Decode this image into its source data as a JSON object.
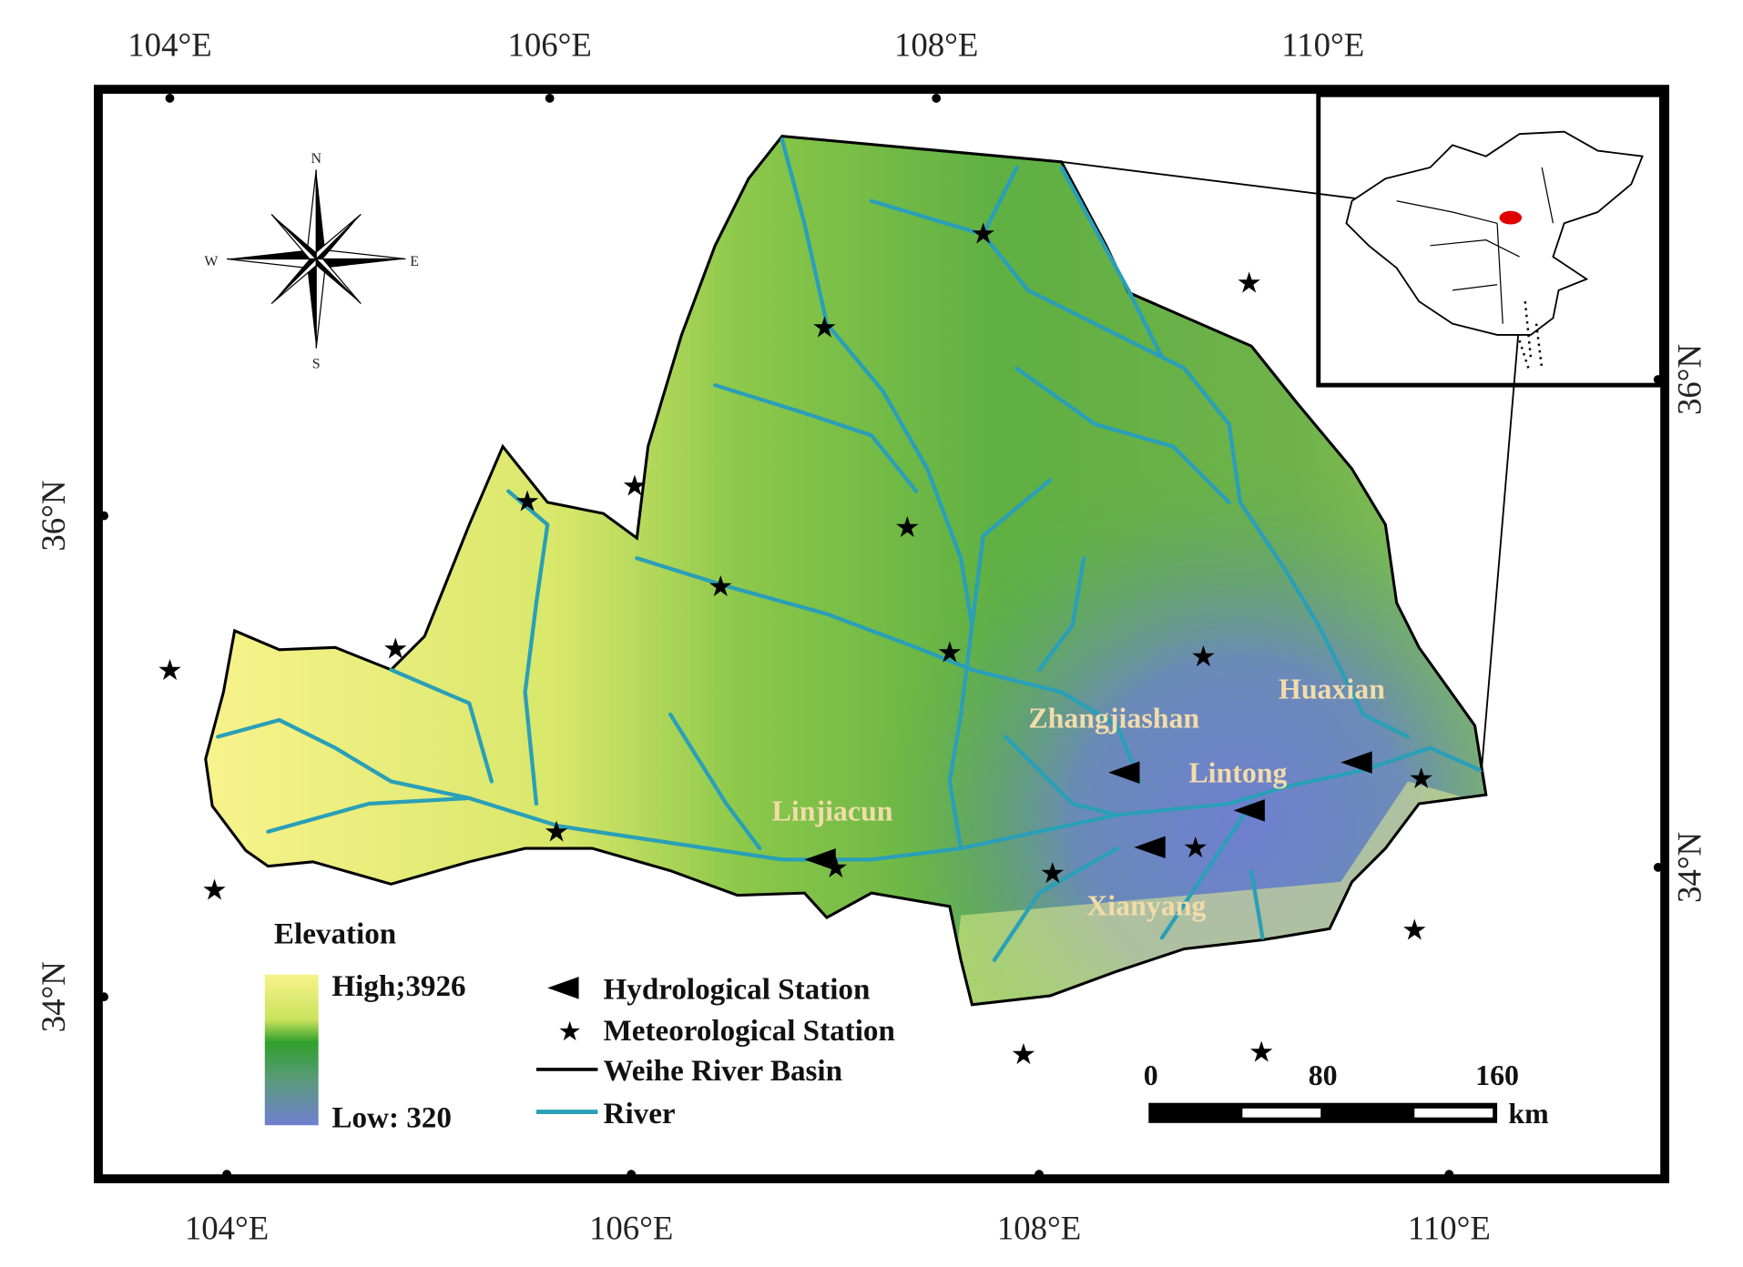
{
  "axes": {
    "top": [
      "104°E",
      "106°E",
      "108°E",
      "110°E"
    ],
    "bottom": [
      "104°E",
      "106°E",
      "108°E",
      "110°E"
    ],
    "left": [
      "36°N",
      "34°N"
    ],
    "right": [
      "36°N",
      "34°N"
    ]
  },
  "compass": {
    "north": "N",
    "south": "S",
    "west": "W",
    "east": "E"
  },
  "legend": {
    "title": "Elevation",
    "high": "High;3926",
    "low": "Low: 320",
    "items": [
      "Hydrological Station",
      "Meteorological Station",
      "Weihe River Basin",
      "River"
    ]
  },
  "stations": [
    "Linjiacun",
    "Zhangjiashan",
    "Lintong",
    "Huaxian",
    "Xianyang"
  ],
  "scale": {
    "labels": [
      "0",
      "80",
      "160"
    ],
    "unit": "km"
  }
}
